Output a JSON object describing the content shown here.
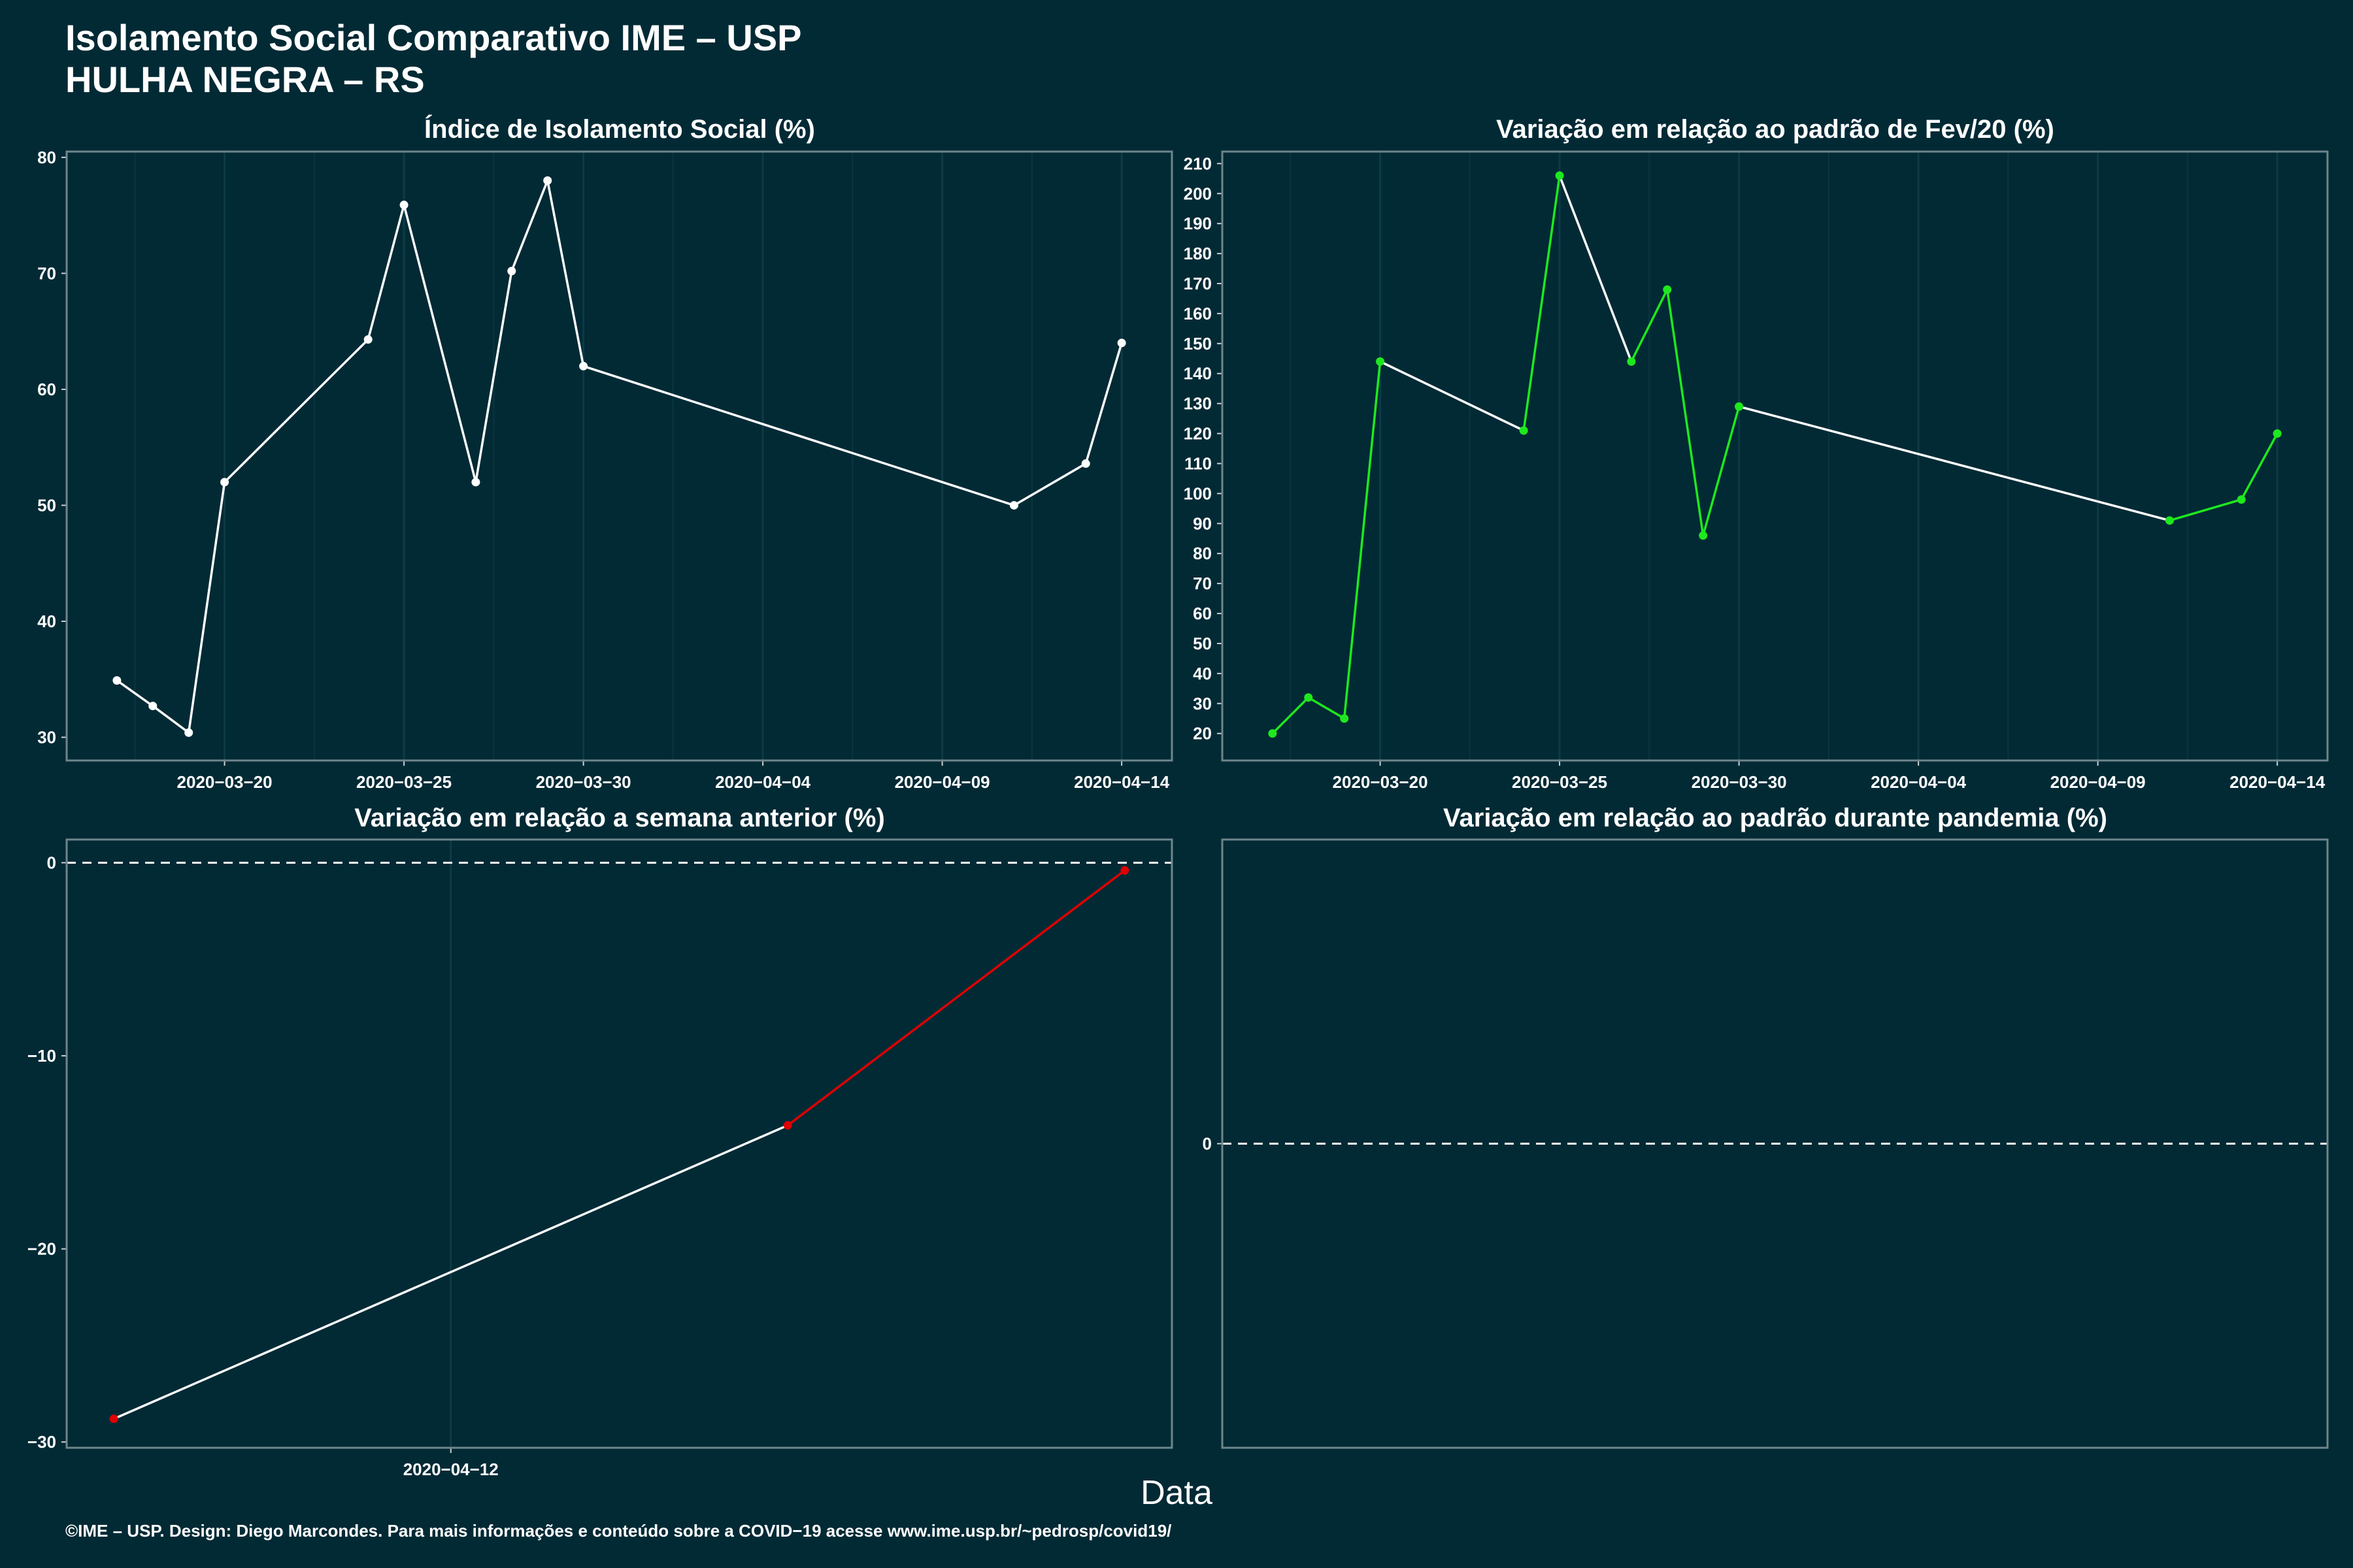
{
  "page": {
    "title_line1": "Isolamento Social Comparativo IME – USP",
    "title_line2": "HULHA NEGRA – RS",
    "xlabel": "Data",
    "footer": "©IME – USP. Design: Diego Marcondes. Para mais informações e conteúdo sobre a COVID−19 acesse www.ime.usp.br/~pedrosp/covid19/"
  },
  "colors": {
    "background": "#022a35",
    "panel_border": "#6f868b",
    "line": "#ffffff",
    "green": "#1ee81e",
    "red": "#e00000"
  },
  "chart_data": [
    {
      "type": "line",
      "title": "Índice de Isolamento Social (%)",
      "x": [
        "2020-03-17",
        "2020-03-18",
        "2020-03-19",
        "2020-03-20",
        "2020-03-24",
        "2020-03-25",
        "2020-03-27",
        "2020-03-28",
        "2020-03-29",
        "2020-03-30",
        "2020-04-11",
        "2020-04-13",
        "2020-04-14"
      ],
      "y": [
        34.9,
        32.7,
        30.4,
        52.0,
        64.3,
        75.9,
        52.0,
        70.2,
        78.0,
        62.0,
        50.0,
        53.6,
        64.0
      ],
      "ylim": [
        28,
        80.5
      ],
      "yticks": [
        30,
        40,
        50,
        60,
        70,
        80
      ],
      "xticks": [
        "2020-03-20",
        "2020-03-25",
        "2020-03-30",
        "2020-04-04",
        "2020-04-09",
        "2020-04-14"
      ],
      "xlim": [
        "2020-03-15.6",
        "2020-04-15.4"
      ],
      "point_color": "#ffffff",
      "line_color": "#ffffff"
    },
    {
      "type": "line",
      "title": "Variação em relação ao padrão de Fev/20 (%)",
      "x": [
        "2020-03-17",
        "2020-03-18",
        "2020-03-19",
        "2020-03-20",
        "2020-03-24",
        "2020-03-25",
        "2020-03-27",
        "2020-03-28",
        "2020-03-29",
        "2020-03-30",
        "2020-04-11",
        "2020-04-13",
        "2020-04-14"
      ],
      "y": [
        20,
        32,
        25,
        144,
        121,
        206,
        144,
        168,
        86,
        129,
        91,
        98,
        120
      ],
      "ylim": [
        11,
        214
      ],
      "yticks": [
        20,
        30,
        40,
        50,
        60,
        70,
        80,
        90,
        100,
        110,
        120,
        130,
        140,
        150,
        160,
        170,
        180,
        190,
        200,
        210
      ],
      "xticks": [
        "2020-03-20",
        "2020-03-25",
        "2020-03-30",
        "2020-04-04",
        "2020-04-09",
        "2020-04-14"
      ],
      "xlim": [
        "2020-03-15.6",
        "2020-04-15.4"
      ],
      "point_color": "#1ee81e",
      "segment_colors": [
        "#1ee81e",
        "#1ee81e",
        "#1ee81e",
        "#ffffff",
        "#1ee81e",
        "#ffffff",
        "#1ee81e",
        "#1ee81e",
        "#1ee81e",
        "#ffffff",
        "#1ee81e",
        "#1ee81e"
      ]
    },
    {
      "type": "line",
      "title": "Variação em relação a semana anterior (%)",
      "x": [
        "2020-04-11",
        "2020-04-13",
        "2020-04-14"
      ],
      "y": [
        -28.8,
        -13.6,
        -0.4
      ],
      "ylim": [
        -30.3,
        1.2
      ],
      "yticks": [
        0,
        -10,
        -20,
        -30
      ],
      "ytick_labels": [
        "0",
        "−10",
        "−20",
        "−30"
      ],
      "xticks": [
        "2020-04-12"
      ],
      "xlim": [
        "2020-04-10.86",
        "2020-04-14.14"
      ],
      "reference_line": 0,
      "point_color": "#e00000",
      "segment_colors": [
        "#ffffff",
        "#e00000"
      ]
    },
    {
      "type": "line",
      "title": "Variação em relação ao padrão durante pandemia (%)",
      "x": [],
      "y": [],
      "ylim": [
        -1,
        1
      ],
      "yticks": [
        0
      ],
      "ytick_labels": [
        "0"
      ],
      "xticks": [],
      "reference_line": 0
    }
  ]
}
